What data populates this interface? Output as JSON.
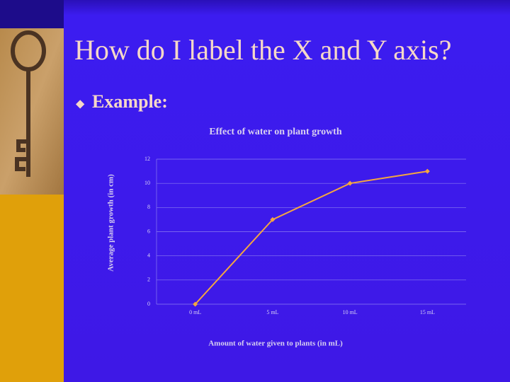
{
  "slide": {
    "title": "How do I label the X and Y axis?",
    "bullet": "Example:"
  },
  "chart_data": {
    "type": "line",
    "title": "Effect of water on plant growth",
    "x_label": "Amount of water given to plants (in mL)",
    "y_label": "Average plant growth (in cm)",
    "categories": [
      "0 mL",
      "5 mL",
      "10 mL",
      "15 mL"
    ],
    "values": [
      0,
      7,
      10,
      11
    ],
    "color": "#f4a640",
    "ylim": [
      0,
      12
    ],
    "yticks": [
      0,
      2,
      4,
      6,
      8,
      10,
      12
    ],
    "grid": true
  }
}
